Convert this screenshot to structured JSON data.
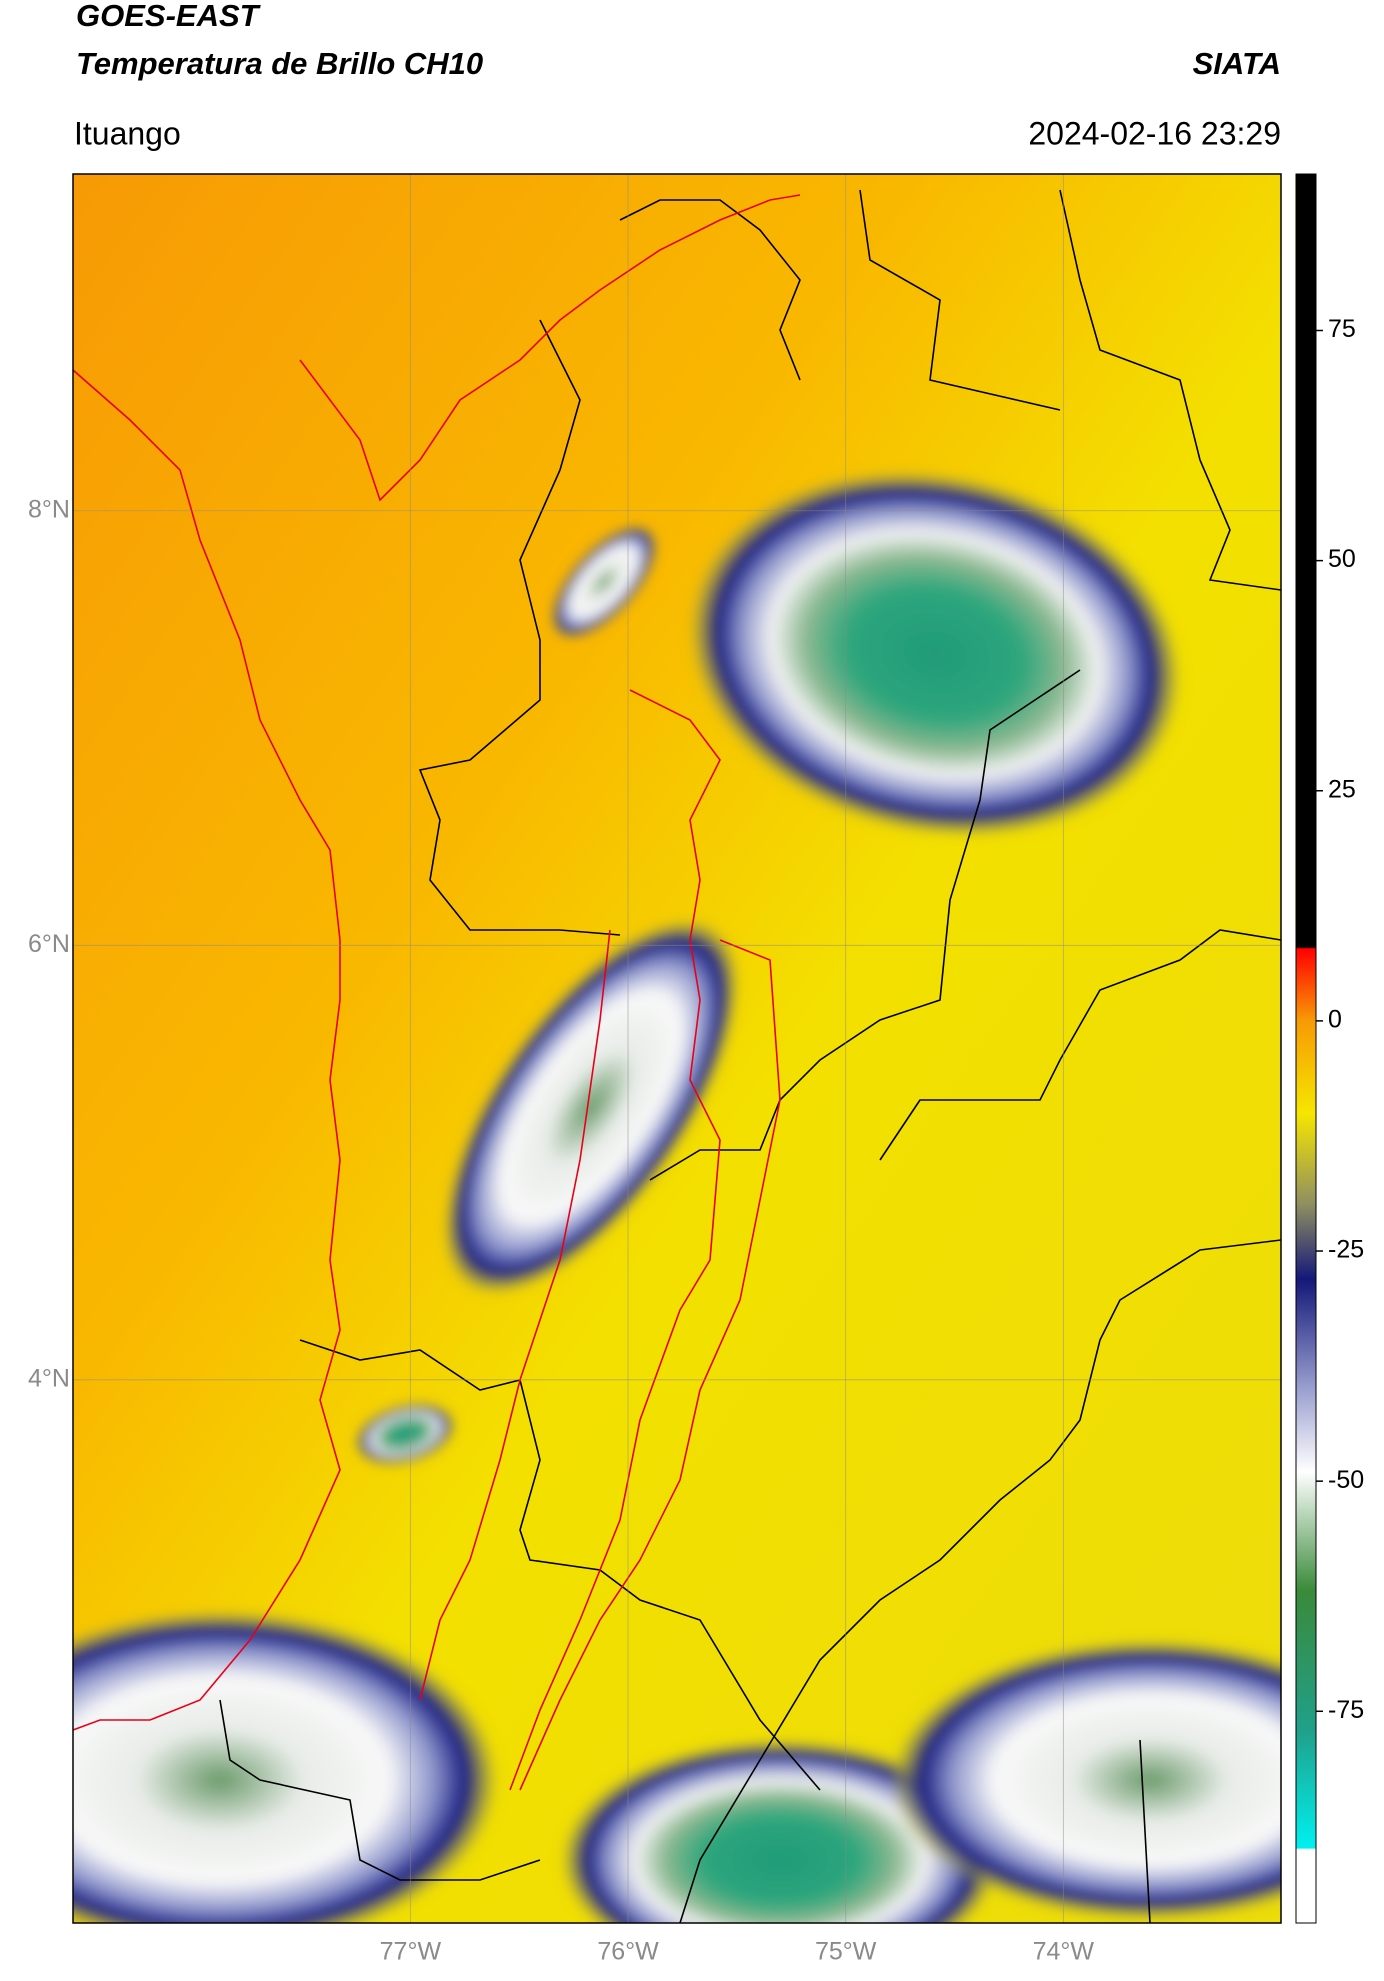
{
  "header": {
    "title": "GOES-EAST",
    "subtitle": "Temperatura de Brillo CH10",
    "source": "SIATA",
    "location": "Ituango",
    "timestamp": "2024-02-16 23:29"
  },
  "map": {
    "xlim": [
      -78.55,
      -73.0
    ],
    "ylim": [
      1.5,
      9.55
    ],
    "xticks": [
      {
        "value": -77,
        "label": "77°W"
      },
      {
        "value": -76,
        "label": "76°W"
      },
      {
        "value": -75,
        "label": "75°W"
      },
      {
        "value": -74,
        "label": "74°W"
      }
    ],
    "yticks": [
      {
        "value": 8,
        "label": "8°N"
      },
      {
        "value": 6,
        "label": "6°N"
      },
      {
        "value": 4,
        "label": "4°N"
      }
    ],
    "grid": true
  },
  "colorbar": {
    "lim": [
      -98,
      92
    ],
    "ticks": [
      75,
      50,
      25,
      0,
      -25,
      -50,
      -75
    ]
  }
}
